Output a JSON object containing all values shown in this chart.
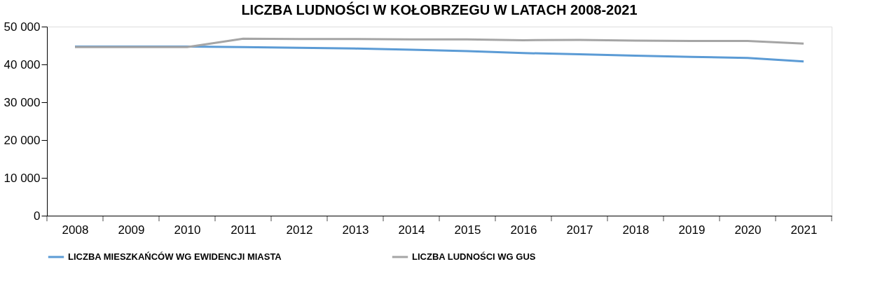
{
  "chart_data": {
    "type": "line",
    "title": "LICZBA LUDNOŚCI W KOŁOBRZEGU W LATACH 2008-2021",
    "categories": [
      "2008",
      "2009",
      "2010",
      "2011",
      "2012",
      "2013",
      "2014",
      "2015",
      "2016",
      "2017",
      "2018",
      "2019",
      "2020",
      "2021"
    ],
    "series": [
      {
        "name": "LICZBA MIESZKAŃCÓW WG EWIDENCJI MIASTA",
        "color": "#5b9bd5",
        "values": [
          44700,
          44700,
          44700,
          44600,
          44400,
          44200,
          43900,
          43500,
          43000,
          42700,
          42300,
          42000,
          41700,
          40800
        ]
      },
      {
        "name": "LICZBA LUDNOŚCI WG GUS",
        "color": "#a5a5a5",
        "values": [
          44600,
          44600,
          44600,
          46800,
          46700,
          46700,
          46600,
          46600,
          46400,
          46500,
          46300,
          46200,
          46200,
          45500
        ]
      }
    ],
    "ylim": [
      0,
      50000
    ],
    "yticks": [
      {
        "value": 0,
        "label": "0"
      },
      {
        "value": 10000,
        "label": "10 000"
      },
      {
        "value": 20000,
        "label": "20 000"
      },
      {
        "value": 30000,
        "label": "30 000"
      },
      {
        "value": 40000,
        "label": "40 000"
      },
      {
        "value": 50000,
        "label": "50 000"
      }
    ],
    "grid": false,
    "legend": "bottom",
    "marker": "none",
    "line_style": "solid"
  }
}
